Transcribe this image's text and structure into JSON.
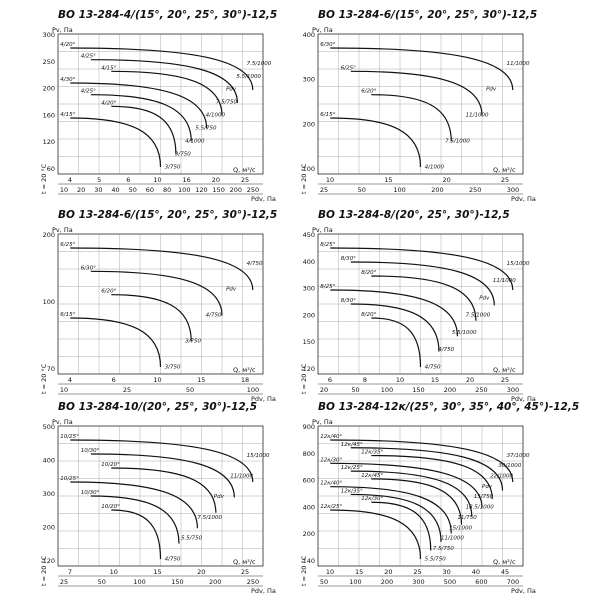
{
  "panels": [
    {
      "title": "ВО 13-284-4/(15°, 20°, 25°, 30°)-12,5",
      "y_unit": "Pv, Па",
      "yticks": [
        "300",
        "250",
        "200",
        "160",
        "120",
        "60"
      ],
      "xticks_q": [
        "4",
        "5",
        "6",
        "10",
        "16",
        "20",
        "25"
      ],
      "xticks_pdv": [
        "10",
        "20",
        "30",
        "40",
        "50",
        "60",
        "80",
        "100",
        "120",
        "150",
        "200",
        "250"
      ],
      "q_label": "Q, м³/с",
      "pdv_label": "Pdv, Па",
      "temp_label": "t = 20 °C",
      "curve_labels": [
        "4/20°",
        "4/25°",
        "4/15°",
        "4/30°",
        "4/25°",
        "4/20°",
        "4/15°",
        "7.5/1000",
        "5.5/1000",
        "Pdv",
        "7.5/750",
        "4/1000",
        "5.5/750",
        "4/1000",
        "3/750",
        "3/750"
      ]
    },
    {
      "title": "ВО 13-284-6/(15°, 20°, 25°, 30°)-12,5",
      "y_unit": "Pv, Па",
      "yticks": [
        "400",
        "300",
        "200",
        "100"
      ],
      "xticks_q": [
        "10",
        "15",
        "20",
        "25"
      ],
      "xticks_pdv": [
        "25",
        "50",
        "100",
        "200",
        "250",
        "300"
      ],
      "q_label": "Q, м³/с",
      "pdv_label": "Pdv, Па",
      "temp_label": "t = 20 °C",
      "curve_labels": [
        "6/30°",
        "6/25°",
        "6/20°",
        "6/15°",
        "11/1000",
        "Pdv",
        "11/1000",
        "7.5/1000",
        "4/1000"
      ]
    },
    {
      "title": "ВО 13-284-6/(15°, 20°, 25°, 30°)-12,5",
      "y_unit": "Pv, Па",
      "yticks": [
        "200",
        "100",
        "70"
      ],
      "xticks_q": [
        "4",
        "6",
        "10",
        "15",
        "18"
      ],
      "xticks_pdv": [
        "10",
        "25",
        "50",
        "100"
      ],
      "q_label": "Q, м³/с",
      "pdv_label": "Pdv, Па",
      "temp_label": "t = 20 °C",
      "curve_labels": [
        "6/25°",
        "6/30°",
        "6/20°",
        "6/15°",
        "4/750",
        "Pdv",
        "4/750",
        "3/750",
        "3/750"
      ]
    },
    {
      "title": "ВО 13-284-8/(20°, 25°, 30°)-12,5",
      "y_unit": "Pv, Па",
      "yticks": [
        "450",
        "400",
        "300",
        "200",
        "150",
        "120"
      ],
      "xticks_q": [
        "6",
        "8",
        "10",
        "15",
        "20",
        "25"
      ],
      "xticks_pdv": [
        "20",
        "50",
        "100",
        "150",
        "200",
        "250",
        "300"
      ],
      "q_label": "Q, м³/с",
      "pdv_label": "Pdv, Па",
      "temp_label": "t = 20 °C",
      "curve_labels": [
        "8/25°",
        "8/30°",
        "8/20°",
        "8/25°",
        "8/30°",
        "8/20°",
        "15/1000",
        "11/1000",
        "Pdv",
        "7.5/1000",
        "5.5/1000",
        "4/750",
        "4/750"
      ]
    },
    {
      "title": "ВО 13-284-10/(20°, 25°, 30°)-12,5",
      "y_unit": "Pv, Па",
      "yticks": [
        "500",
        "400",
        "300",
        "200",
        "120"
      ],
      "xticks_q": [
        "7",
        "10",
        "15",
        "20",
        "25"
      ],
      "xticks_pdv": [
        "25",
        "50",
        "100",
        "150",
        "200",
        "250"
      ],
      "q_label": "Q, м³/с",
      "pdv_label": "Pdv, Па",
      "temp_label": "t = 20 °C",
      "curve_labels": [
        "10/25°",
        "10/30°",
        "10/20°",
        "10/25°",
        "10/30°",
        "10/20°",
        "15/1000",
        "11/1000",
        "Pdv",
        "7.5/1000",
        "5.5/750",
        "4/750"
      ]
    },
    {
      "title": "ВО 13-284-12к/(25°, 30°, 35°, 40°, 45°)-12,5",
      "y_unit": "Pv, Па",
      "yticks": [
        "900",
        "800",
        "600",
        "400",
        "200",
        "140"
      ],
      "xticks_q": [
        "10",
        "15",
        "20",
        "25",
        "30",
        "40",
        "45"
      ],
      "xticks_pdv": [
        "50",
        "100",
        "200",
        "300",
        "500",
        "600",
        "700"
      ],
      "q_label": "Q, м³/с",
      "pdv_label": "Pdv, Па",
      "temp_label": "t = 20 °C",
      "curve_labels": [
        "12к/40°",
        "12к/45°",
        "12к/35°",
        "12к/30°",
        "12к/25°",
        "12к/45°",
        "12к/40°",
        "12к/35°",
        "12к/30°",
        "12к/25°",
        "37/1000",
        "30/1000",
        "22/1000",
        "Pdv",
        "15/750",
        "18.5/1000",
        "11/750",
        "15/1000",
        "11/1000",
        "7.5/750",
        "5.5/750"
      ]
    }
  ]
}
